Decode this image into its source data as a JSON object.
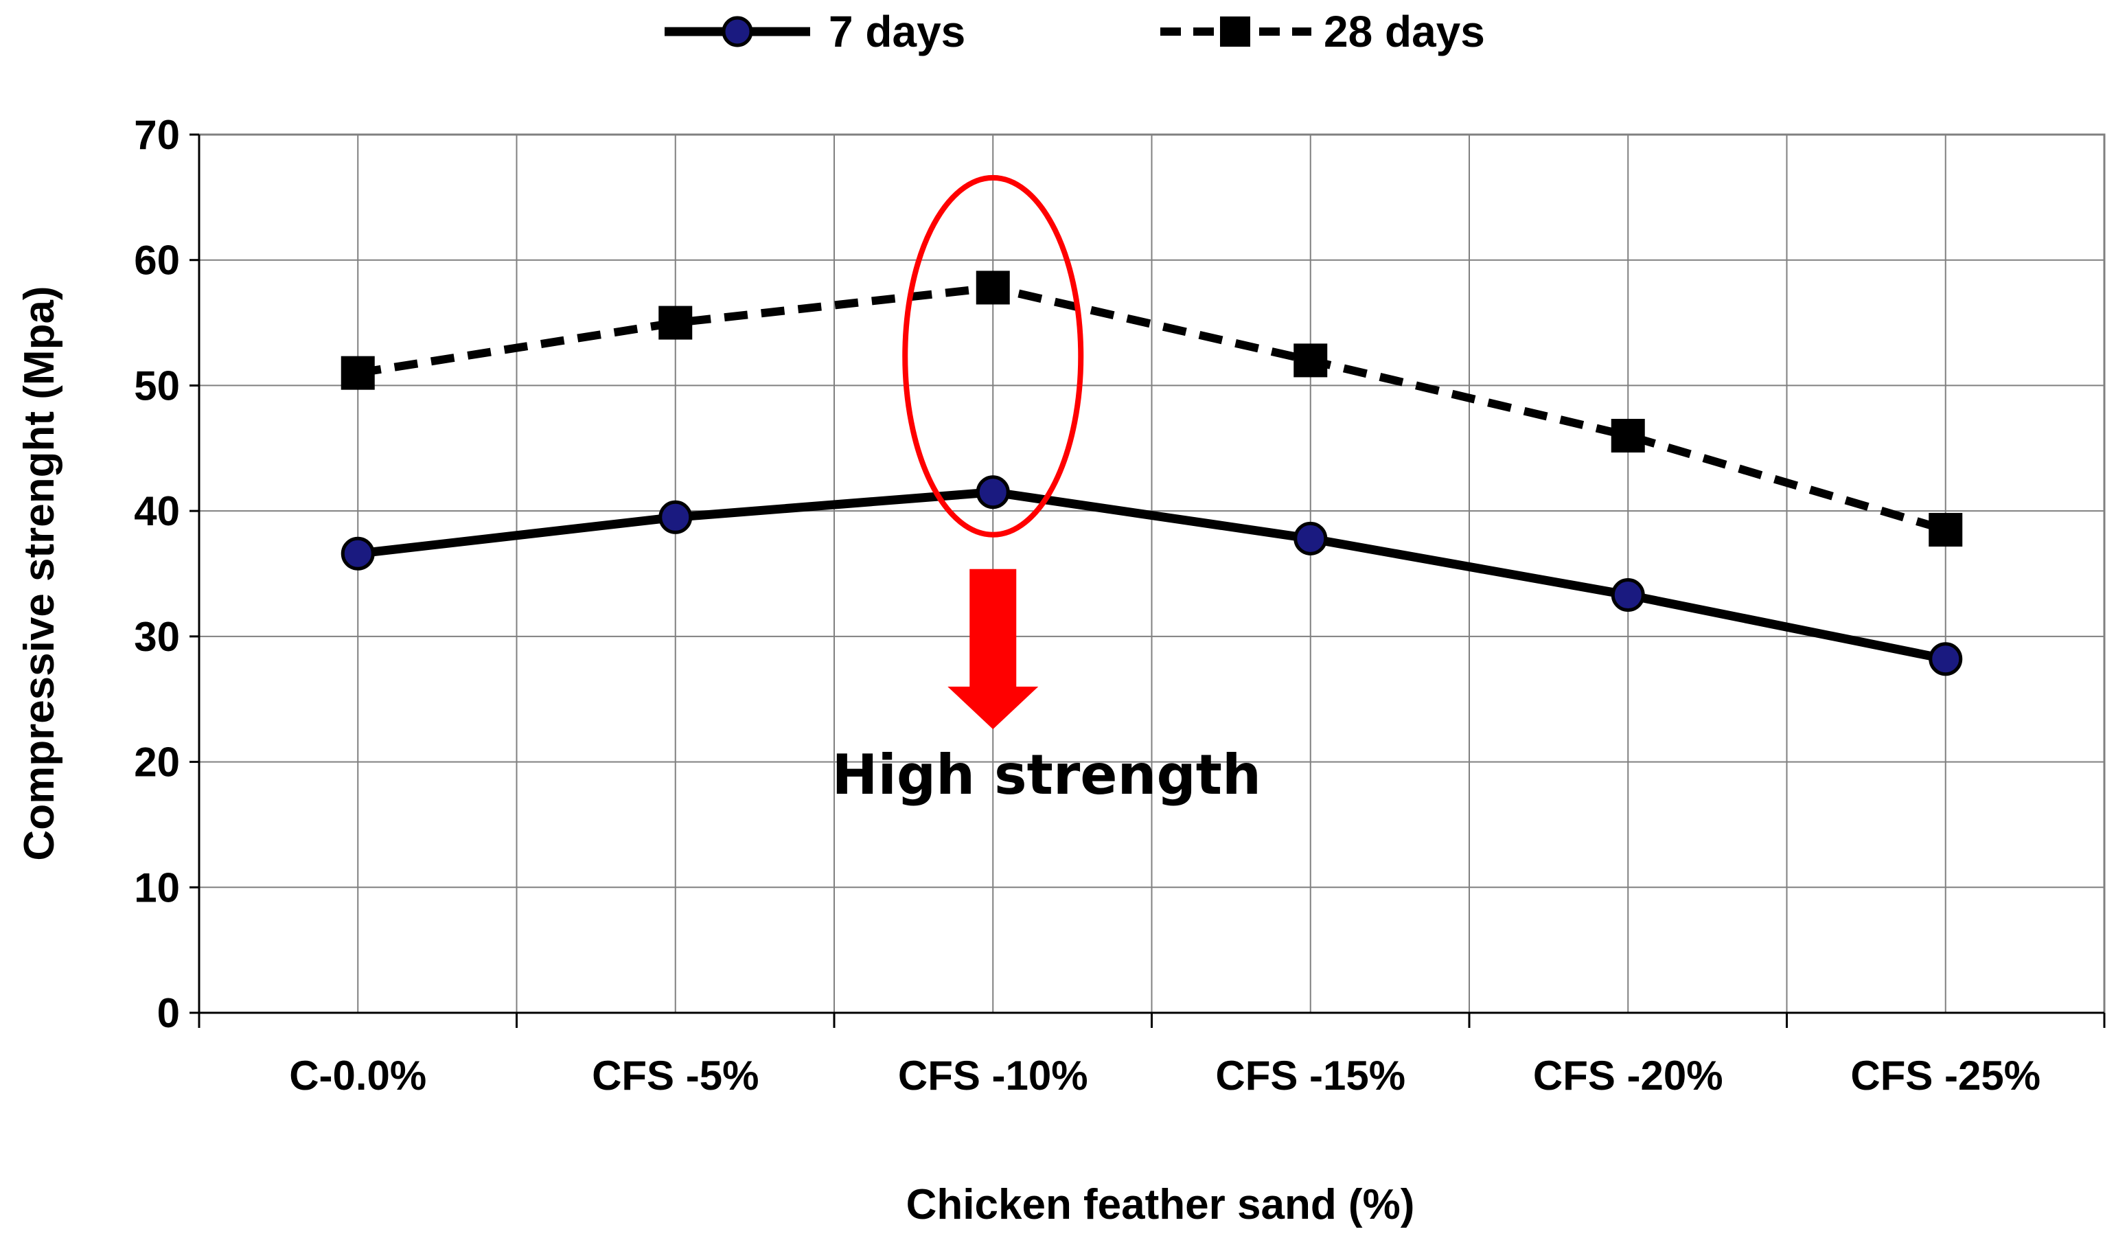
{
  "chart_data": {
    "type": "line",
    "title": "",
    "xlabel": "Chicken feather sand (%)",
    "ylabel": "Compressive strenght (Mpa)",
    "categories": [
      "C-0.0%",
      "CFS -5%",
      "CFS -10%",
      "CFS -15%",
      "CFS -20%",
      "CFS -25%"
    ],
    "ylim": [
      0,
      70
    ],
    "yticks": [
      0,
      10,
      20,
      30,
      40,
      50,
      60,
      70
    ],
    "grid": true,
    "legend_position": "top",
    "series": [
      {
        "name": "7 days",
        "marker": "circle",
        "line_style": "solid",
        "marker_color": "#1a1a80",
        "values": [
          36.6,
          39.5,
          41.5,
          37.8,
          33.3,
          28.2
        ]
      },
      {
        "name": "28 days",
        "marker": "square",
        "line_style": "dashed",
        "marker_color": "#000000",
        "values": [
          51.0,
          55.0,
          57.8,
          52.0,
          46.0,
          38.5
        ]
      }
    ],
    "annotations": [
      {
        "text": "High strength",
        "target_category": "CFS -10%",
        "color": "#ff0000",
        "shape": "ellipse-and-arrow"
      }
    ]
  }
}
